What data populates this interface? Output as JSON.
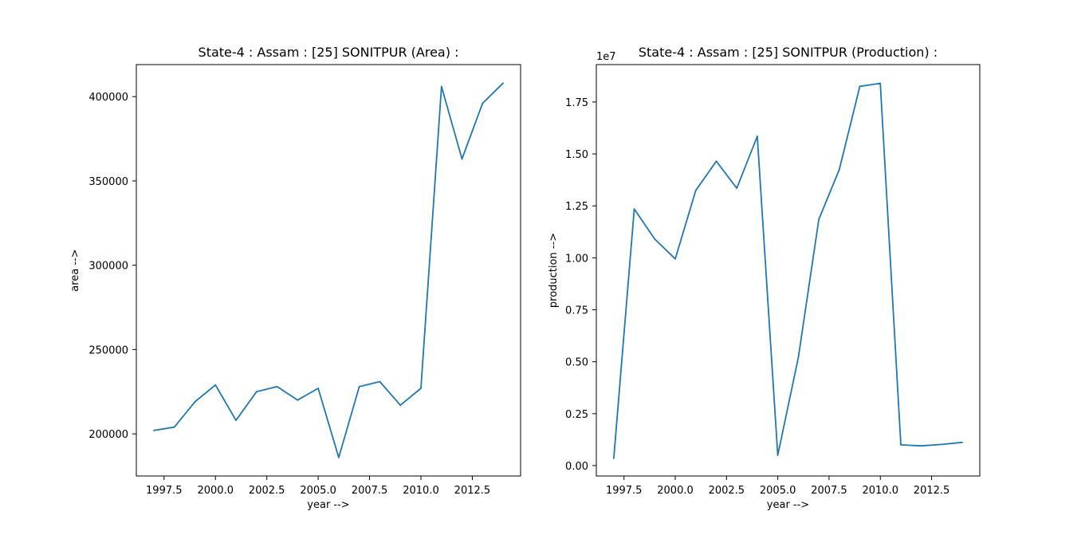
{
  "chart_data": [
    {
      "type": "line",
      "title": "State-4 : Assam : [25] SONITPUR (Area) :",
      "xlabel": "year -->",
      "ylabel": "area -->",
      "xlim": [
        1996.15,
        2014.85
      ],
      "ylim": [
        175000,
        419000
      ],
      "xticks": [
        1997.5,
        2000.0,
        2002.5,
        2005.0,
        2007.5,
        2010.0,
        2012.5
      ],
      "xtick_labels": [
        "1997.5",
        "2000.0",
        "2002.5",
        "2005.0",
        "2007.5",
        "2010.0",
        "2012.5"
      ],
      "yticks": [
        200000,
        250000,
        300000,
        350000,
        400000
      ],
      "ytick_labels": [
        "200000",
        "250000",
        "300000",
        "350000",
        "400000"
      ],
      "offset_label": "",
      "color": "#1f77b4",
      "grid": false,
      "x": [
        1997,
        1998,
        1999,
        2000,
        2001,
        2002,
        2003,
        2004,
        2005,
        2006,
        2007,
        2008,
        2009,
        2010,
        2011,
        2012,
        2013,
        2014
      ],
      "y": [
        202000,
        204000,
        219000,
        229000,
        208000,
        225000,
        228000,
        220000,
        227000,
        186000,
        228000,
        231000,
        217000,
        227000,
        406000,
        363000,
        396000,
        408000
      ]
    },
    {
      "type": "line",
      "title": "State-4 : Assam : [25] SONITPUR (Production) :",
      "xlabel": "year -->",
      "ylabel": "production -->",
      "xlim": [
        1996.15,
        2014.85
      ],
      "ylim": [
        -500000,
        19300000
      ],
      "xticks": [
        1997.5,
        2000.0,
        2002.5,
        2005.0,
        2007.5,
        2010.0,
        2012.5
      ],
      "xtick_labels": [
        "1997.5",
        "2000.0",
        "2002.5",
        "2005.0",
        "2007.5",
        "2010.0",
        "2012.5"
      ],
      "yticks": [
        0,
        2500000,
        5000000,
        7500000,
        10000000,
        12500000,
        15000000,
        17500000
      ],
      "ytick_labels": [
        "0.00",
        "0.25",
        "0.50",
        "0.75",
        "1.00",
        "1.25",
        "1.50",
        "1.75"
      ],
      "offset_label": "1e7",
      "color": "#1f77b4",
      "grid": false,
      "x": [
        1997,
        1998,
        1999,
        2000,
        2001,
        2002,
        2003,
        2004,
        2005,
        2006,
        2007,
        2008,
        2009,
        2010,
        2011,
        2012,
        2013,
        2014
      ],
      "y": [
        350000,
        12350000,
        10900000,
        9950000,
        13250000,
        14650000,
        13350000,
        15850000,
        500000,
        5200000,
        11850000,
        14250000,
        18250000,
        18400000,
        1000000,
        950000,
        1020000,
        1120000
      ]
    }
  ]
}
